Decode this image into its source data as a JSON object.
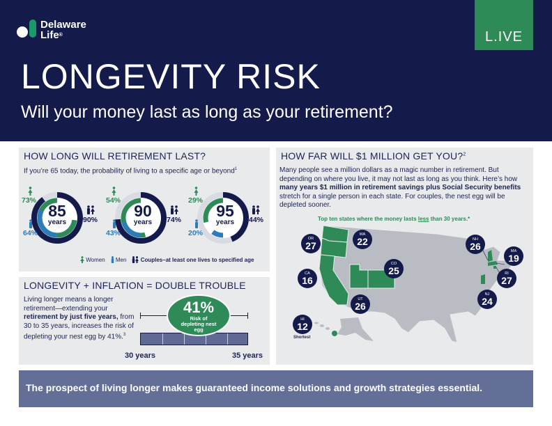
{
  "brand": {
    "name_line1": "Delaware",
    "name_line2": "Life",
    "live_logo": "L.IVE"
  },
  "header": {
    "title": "LONGEVITY RISK",
    "subtitle": "Will your money last as long as your retirement?"
  },
  "retirement": {
    "title": "HOW LONG WILL RETIREMENT LAST?",
    "subtitle": "If you’re 65 today, the probability of living  to a specific age or beyond",
    "footnote": "1",
    "years_label": "years",
    "chart_data": {
      "type": "donut",
      "categories": [
        "85",
        "90",
        "95"
      ],
      "series": [
        {
          "name": "Women",
          "values": [
            73,
            54,
            29
          ]
        },
        {
          "name": "Men",
          "values": [
            64,
            43,
            20
          ]
        },
        {
          "name": "Couples–at least one lives to specified age",
          "values": [
            90,
            74,
            44
          ]
        }
      ]
    },
    "pct": {
      "women": [
        "73%",
        "54%",
        "29%"
      ],
      "men": [
        "64%",
        "43%",
        "20%"
      ],
      "couples": [
        "90%",
        "74%",
        "44%"
      ]
    },
    "legend": {
      "women": "Women",
      "men": "Men",
      "couples": "Couples–at least one lives to specified age"
    },
    "colors": {
      "women": "#2e8a57",
      "men": "#2b7cb8",
      "couples": "#141a4a"
    }
  },
  "inflation": {
    "title": "LONGEVITY + INFLATION = DOUBLE TROUBLE",
    "body_1": "Living longer means a longer retirement—extending your ",
    "body_bold": "retirement by just five years,",
    "body_2": " from 30 to 35 years, increases the risk of depleting your nest egg by 41%.",
    "footnote": "3",
    "risk_value": "41%",
    "risk_label": "Risk of depleting nest egg",
    "start_label": "30 years",
    "end_label": "35 years"
  },
  "states_map": {
    "title": "HOW FAR WILL $1 MILLION GET YOU?",
    "footnote": "2",
    "intro_1": "Many people see a million dollars as a magic number in retirement. But depending on where you live, it may not last as long as you think. Here’s how ",
    "intro_bold": "many years $1 million in retirement savings plus Social Security benefits",
    "intro_2": " stretch for a single person in each state. For couples, the nest egg will be depleted sooner.",
    "note_1": "Top ten states where the money lasts ",
    "note_underline": "less",
    "note_2": " than 30 years.*",
    "shortest_label": "Shortest",
    "states": [
      {
        "abbr": "OR",
        "years": "27"
      },
      {
        "abbr": "WA",
        "years": "22"
      },
      {
        "abbr": "CA",
        "years": "16"
      },
      {
        "abbr": "CO",
        "years": "25"
      },
      {
        "abbr": "UT",
        "years": "26"
      },
      {
        "abbr": "HI",
        "years": "12"
      },
      {
        "abbr": "NH",
        "years": "26"
      },
      {
        "abbr": "MA",
        "years": "19"
      },
      {
        "abbr": "RI",
        "years": "27"
      },
      {
        "abbr": "NJ",
        "years": "24"
      }
    ]
  },
  "footer": {
    "text": "The prospect of living longer makes guaranteed income solutions and growth strategies essential."
  }
}
